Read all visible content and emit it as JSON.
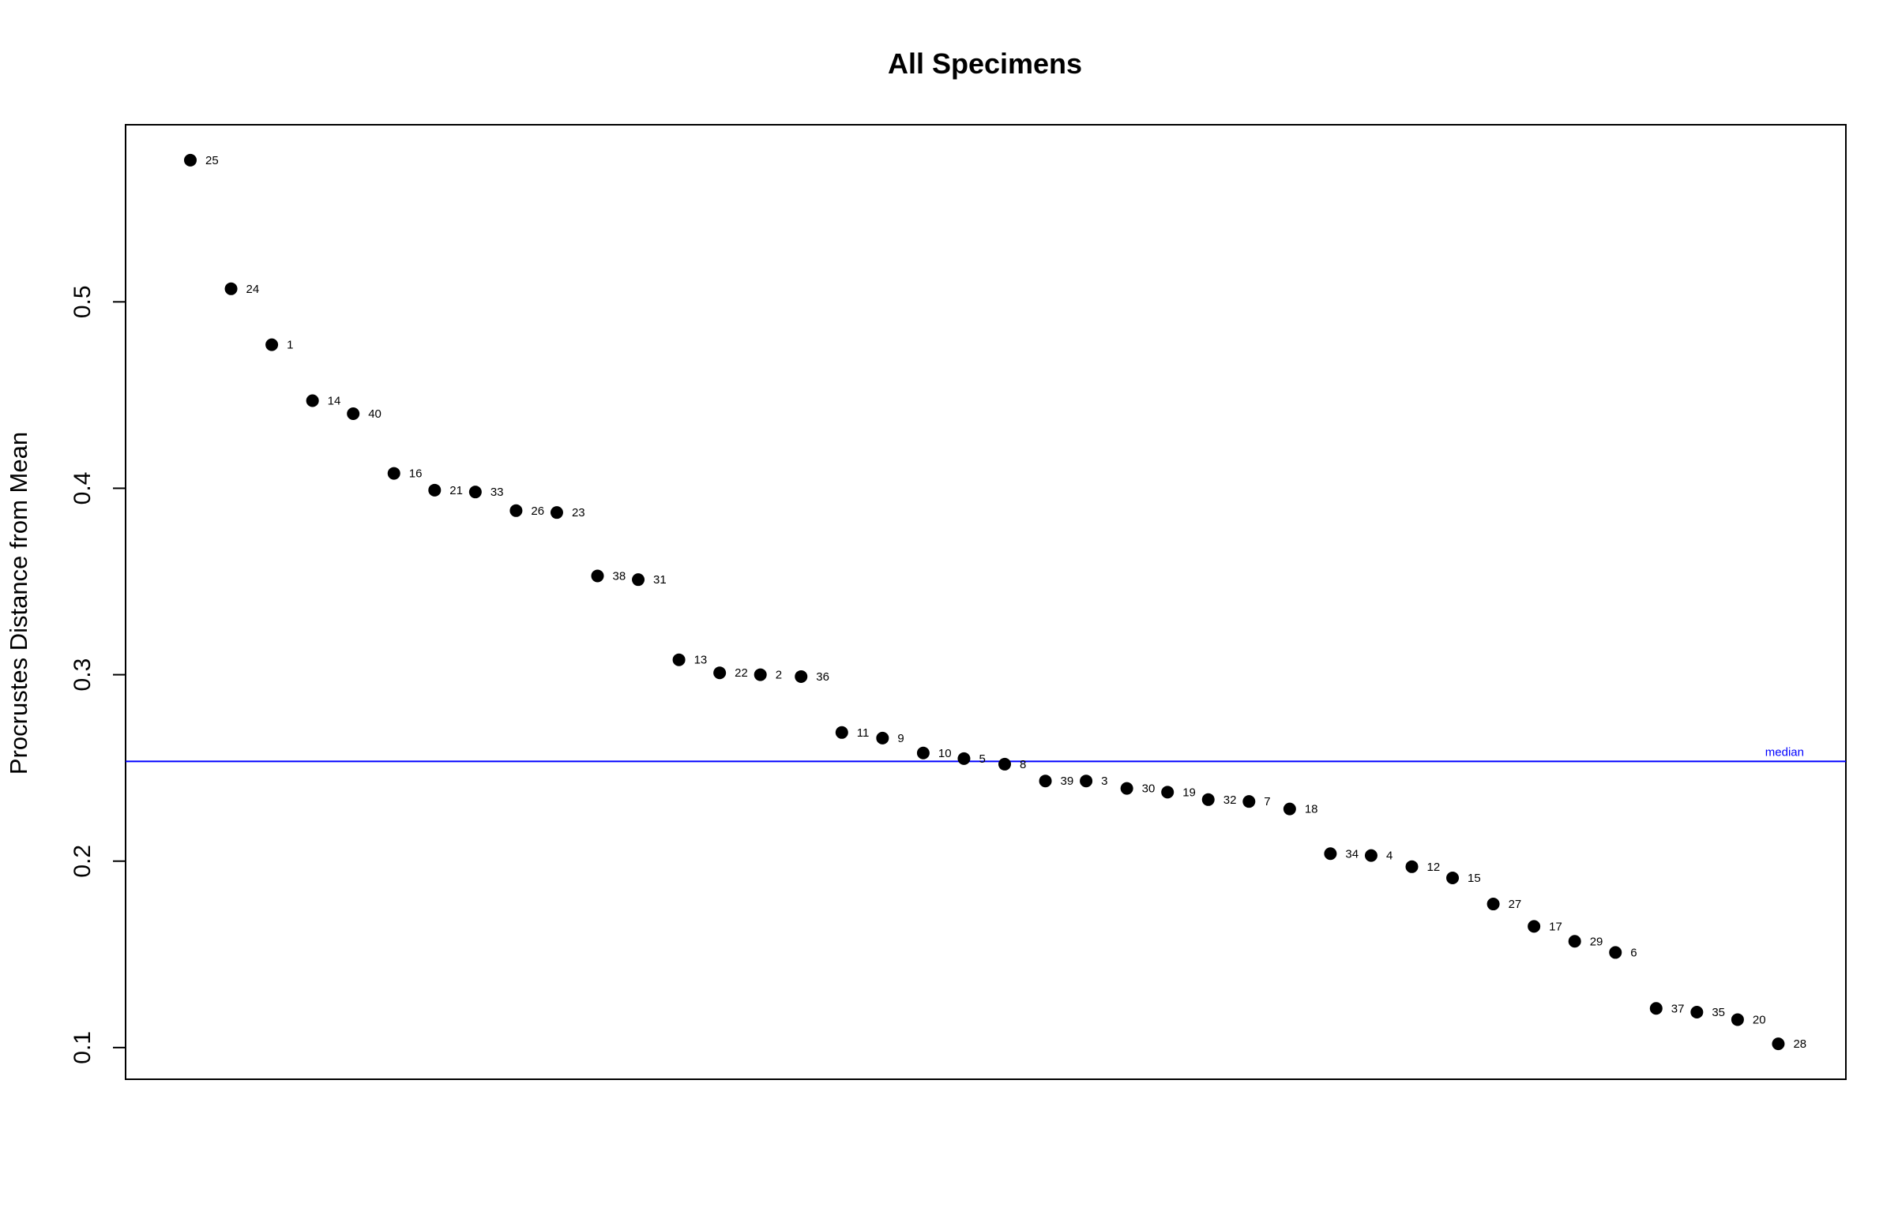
{
  "chart_data": {
    "type": "scatter",
    "title": "All Specimens",
    "xlabel": "",
    "ylabel": "Procrustes Distance from Mean",
    "ylim": [
      0.083,
      0.595
    ],
    "yticks": [
      "0.1",
      "0.2",
      "0.3",
      "0.4",
      "0.5"
    ],
    "ytick_values": [
      0.1,
      0.2,
      0.3,
      0.4,
      0.5
    ],
    "grid": false,
    "point_color": "#000000",
    "points": [
      {
        "label": "25",
        "y": 0.576
      },
      {
        "label": "24",
        "y": 0.507
      },
      {
        "label": "1",
        "y": 0.477
      },
      {
        "label": "14",
        "y": 0.447
      },
      {
        "label": "40",
        "y": 0.44
      },
      {
        "label": "16",
        "y": 0.408
      },
      {
        "label": "21",
        "y": 0.399
      },
      {
        "label": "33",
        "y": 0.398
      },
      {
        "label": "26",
        "y": 0.388
      },
      {
        "label": "23",
        "y": 0.387
      },
      {
        "label": "38",
        "y": 0.353
      },
      {
        "label": "31",
        "y": 0.351
      },
      {
        "label": "13",
        "y": 0.308
      },
      {
        "label": "22",
        "y": 0.301
      },
      {
        "label": "2",
        "y": 0.3
      },
      {
        "label": "36",
        "y": 0.299
      },
      {
        "label": "11",
        "y": 0.269
      },
      {
        "label": "9",
        "y": 0.266
      },
      {
        "label": "10",
        "y": 0.258
      },
      {
        "label": "5",
        "y": 0.255
      },
      {
        "label": "8",
        "y": 0.252
      },
      {
        "label": "39",
        "y": 0.243
      },
      {
        "label": "3",
        "y": 0.243
      },
      {
        "label": "30",
        "y": 0.239
      },
      {
        "label": "19",
        "y": 0.237
      },
      {
        "label": "32",
        "y": 0.233
      },
      {
        "label": "7",
        "y": 0.232
      },
      {
        "label": "18",
        "y": 0.228
      },
      {
        "label": "34",
        "y": 0.204
      },
      {
        "label": "4",
        "y": 0.203
      },
      {
        "label": "12",
        "y": 0.197
      },
      {
        "label": "15",
        "y": 0.191
      },
      {
        "label": "27",
        "y": 0.177
      },
      {
        "label": "17",
        "y": 0.165
      },
      {
        "label": "29",
        "y": 0.157
      },
      {
        "label": "6",
        "y": 0.151
      },
      {
        "label": "37",
        "y": 0.121
      },
      {
        "label": "35",
        "y": 0.119
      },
      {
        "label": "20",
        "y": 0.115
      },
      {
        "label": "28",
        "y": 0.102
      }
    ],
    "median": {
      "value": 0.2535,
      "label": "median",
      "color": "#0000ff"
    }
  }
}
